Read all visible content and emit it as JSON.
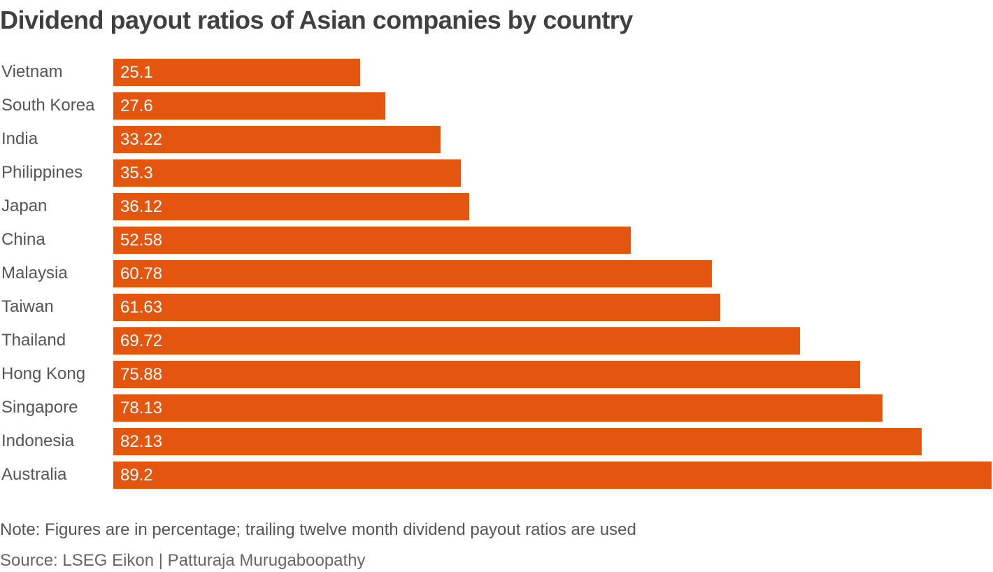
{
  "chart_data": {
    "type": "bar",
    "orientation": "horizontal",
    "title": "Dividend payout ratios of Asian companies by country",
    "categories": [
      "Vietnam",
      "South Korea",
      "India",
      "Philippines",
      "Japan",
      "China",
      "Malaysia",
      "Taiwan",
      "Thailand",
      "Hong Kong",
      "Singapore",
      "Indonesia",
      "Australia"
    ],
    "values": [
      25.1,
      27.6,
      33.22,
      35.3,
      36.12,
      52.58,
      60.78,
      61.63,
      69.72,
      75.88,
      78.13,
      82.13,
      89.2
    ],
    "value_labels": [
      "25.1",
      "27.6",
      "33.22",
      "35.3",
      "36.12",
      "52.58",
      "60.78",
      "61.63",
      "69.72",
      "75.88",
      "78.13",
      "82.13",
      "89.2"
    ],
    "xlim": [
      0,
      89.2
    ],
    "grid": false,
    "bar_color": "#e4550f",
    "note": "Note: Figures are in percentage; trailing twelve month dividend payout ratios are used",
    "source": "Source: LSEG Eikon | Patturaja Murugaboopathy"
  }
}
